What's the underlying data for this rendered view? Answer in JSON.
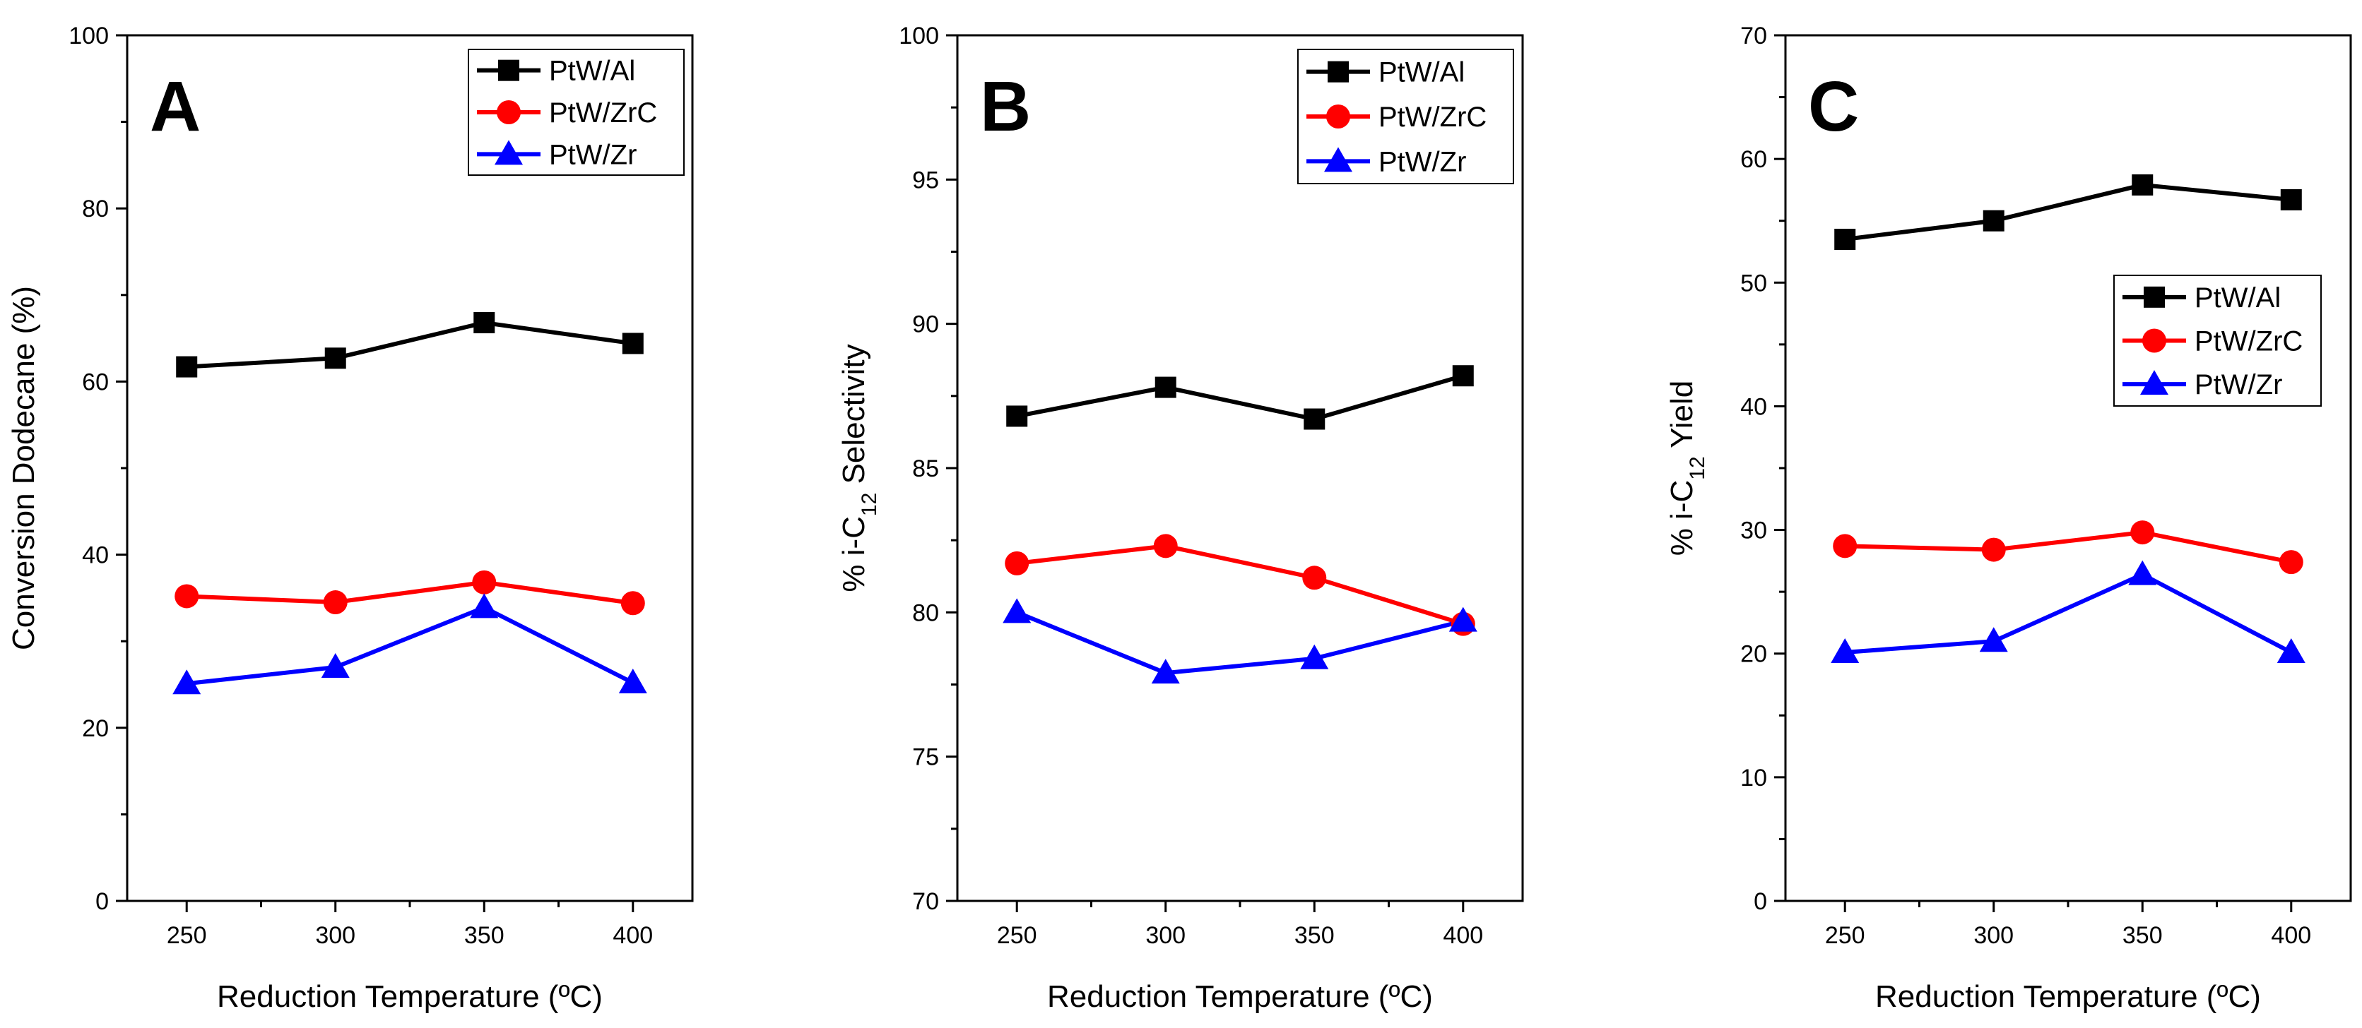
{
  "chart_data": [
    {
      "type": "line",
      "panel_label": "A",
      "x": [
        250,
        300,
        350,
        400
      ],
      "xticks": [
        "250",
        "300",
        "350",
        "400"
      ],
      "xlabel": "Reduction Temperature (ºC)",
      "ylabel": "Conversion Dodecane (%)",
      "ylim": [
        0,
        100
      ],
      "yticks": [
        "0",
        "20",
        "40",
        "60",
        "80",
        "100"
      ],
      "legend_position": "top-right",
      "series": [
        {
          "name": "PtW/Al",
          "color": "#000000",
          "marker": "square",
          "values": [
            61.7,
            62.7,
            66.8,
            64.4
          ]
        },
        {
          "name": "PtW/ZrC",
          "color": "#ff0000",
          "marker": "circle",
          "values": [
            35.2,
            34.5,
            36.8,
            34.4
          ]
        },
        {
          "name": "PtW/Zr",
          "color": "#0000ff",
          "marker": "triangle",
          "values": [
            25.1,
            27.0,
            33.9,
            25.2
          ]
        }
      ]
    },
    {
      "type": "line",
      "panel_label": "B",
      "x": [
        250,
        300,
        350,
        400
      ],
      "xticks": [
        "250",
        "300",
        "350",
        "400"
      ],
      "xlabel": "Reduction Temperature (ºC)",
      "ylabel_prefix": "% i-C",
      "ylabel_sub": "12",
      "ylabel_suffix": " Selectivity",
      "ylim": [
        70,
        100
      ],
      "yticks": [
        "70",
        "75",
        "80",
        "85",
        "90",
        "95",
        "100"
      ],
      "legend_position": "top-right",
      "series": [
        {
          "name": "PtW/Al",
          "color": "#000000",
          "marker": "square",
          "values": [
            86.8,
            87.8,
            86.7,
            88.2
          ]
        },
        {
          "name": "PtW/ZrC",
          "color": "#ff0000",
          "marker": "circle",
          "values": [
            81.7,
            82.3,
            81.2,
            79.6
          ]
        },
        {
          "name": "PtW/Zr",
          "color": "#0000ff",
          "marker": "triangle",
          "values": [
            80.0,
            77.9,
            78.4,
            79.7
          ]
        }
      ]
    },
    {
      "type": "line",
      "panel_label": "C",
      "x": [
        250,
        300,
        350,
        400
      ],
      "xticks": [
        "250",
        "300",
        "350",
        "400"
      ],
      "xlabel": "Reduction Temperature (ºC)",
      "ylabel_prefix": "% i-C",
      "ylabel_sub": "12",
      "ylabel_suffix": " Yield",
      "ylim": [
        0,
        70
      ],
      "yticks": [
        "0",
        "10",
        "20",
        "30",
        "40",
        "50",
        "60",
        "70"
      ],
      "legend_position": "center-right",
      "series": [
        {
          "name": "PtW/Al",
          "color": "#000000",
          "marker": "square",
          "values": [
            53.5,
            55.0,
            57.9,
            56.7
          ]
        },
        {
          "name": "PtW/ZrC",
          "color": "#ff0000",
          "marker": "circle",
          "values": [
            28.7,
            28.4,
            29.8,
            27.4
          ]
        },
        {
          "name": "PtW/Zr",
          "color": "#0000ff",
          "marker": "triangle",
          "values": [
            20.1,
            21.0,
            26.4,
            20.1
          ]
        }
      ]
    }
  ]
}
